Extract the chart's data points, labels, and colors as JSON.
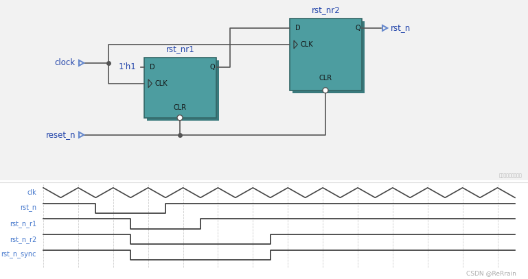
{
  "bg_color": "#f2f2f2",
  "circuit_bg": "#f2f2f2",
  "ff_color": "#4d9da0",
  "ff_shadow": "#3a7a7d",
  "wire_color": "#555555",
  "port_color": "#6688cc",
  "port_fill": "#ddeeff",
  "label_color": "#2244aa",
  "waveform_bg": "#ffffff",
  "signal_color": "#333333",
  "label_signal_color": "#4477cc",
  "grid_color": "#cccccc",
  "watermark": "CSDN @ReRrain",
  "watermark_color": "#aaaaaa",
  "note_color": "#aaaaaa",
  "note_text": "在这里插入图片描述",
  "ff1_label": "rst_nr1",
  "ff2_label": "rst_nr2",
  "signal_names": [
    "clk",
    "rst_n",
    "rst_n_r1",
    "rst_n_r2",
    "rst_n_sync"
  ],
  "clock_label": "clock",
  "reset_label": "reset_n",
  "rstn_label": "rst_n",
  "one_label": "1'h1"
}
